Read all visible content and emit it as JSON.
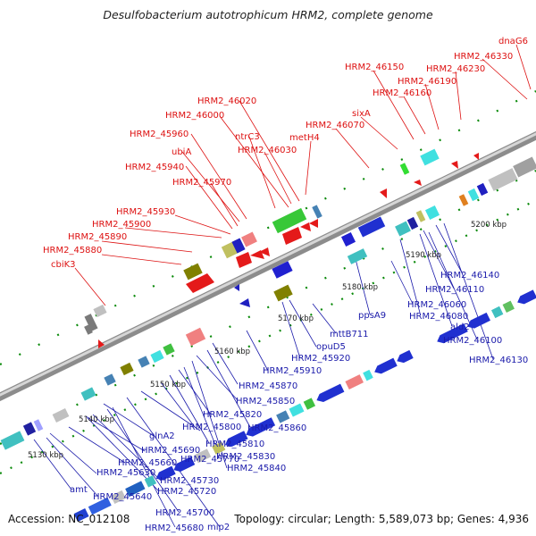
{
  "title": "Desulfobacterium autotrophicum HRM2, complete genome",
  "footer": {
    "accession": "Accession: NC_012108",
    "topology": "Topology: circular; Length: 5,589,073 bp; Genes: 4,936"
  },
  "colors": {
    "forward_label": "#dd1111",
    "reverse_label": "#1a1aaa",
    "backbone": "#909090",
    "tick": "#0a8a0a"
  },
  "axis": {
    "unit": "kbp",
    "ticks": [
      "5130 kbp",
      "5140 kbp",
      "5150 kbp",
      "5160 kbp",
      "5170 kbp",
      "5180 kbp",
      "5190 kbp",
      "5200 kbp"
    ]
  },
  "forward_labels": [
    "cbiK3",
    "HRM2_45880",
    "HRM2_45890",
    "HRM2_45900",
    "HRM2_45930",
    "HRM2_45970",
    "HRM2_45940",
    "ubiA",
    "HRM2_45960",
    "HRM2_46000",
    "HRM2_46020",
    "ntrC3",
    "HRM2_46030",
    "metH4",
    "HRM2_46070",
    "sixA",
    "HRM2_46150",
    "HRM2_46160",
    "HRM2_46190",
    "HRM2_46230",
    "HRM2_46330",
    "dnaG6"
  ],
  "reverse_labels": [
    "amt",
    "HRM2_45630",
    "HRM2_45640",
    "HRM2_45660",
    "HRM2_45690",
    "glnA2",
    "HRM2_45730",
    "HRM2_45720",
    "HRM2_45700",
    "HRM2_45680",
    "mip2",
    "HRM2_45770",
    "HRM2_45800",
    "HRM2_45810",
    "HRM2_45820",
    "HRM2_45830",
    "HRM2_45840",
    "HRM2_45860",
    "HRM2_45850",
    "HRM2_45870",
    "HRM2_45910",
    "HRM2_45920",
    "opuD5",
    "mttB711",
    "ppsA9",
    "HRM2_46060",
    "HRM2_46080",
    "ald2",
    "HRM2_46100",
    "HRM2_46110",
    "HRM2_46140",
    "HRM2_46130"
  ]
}
